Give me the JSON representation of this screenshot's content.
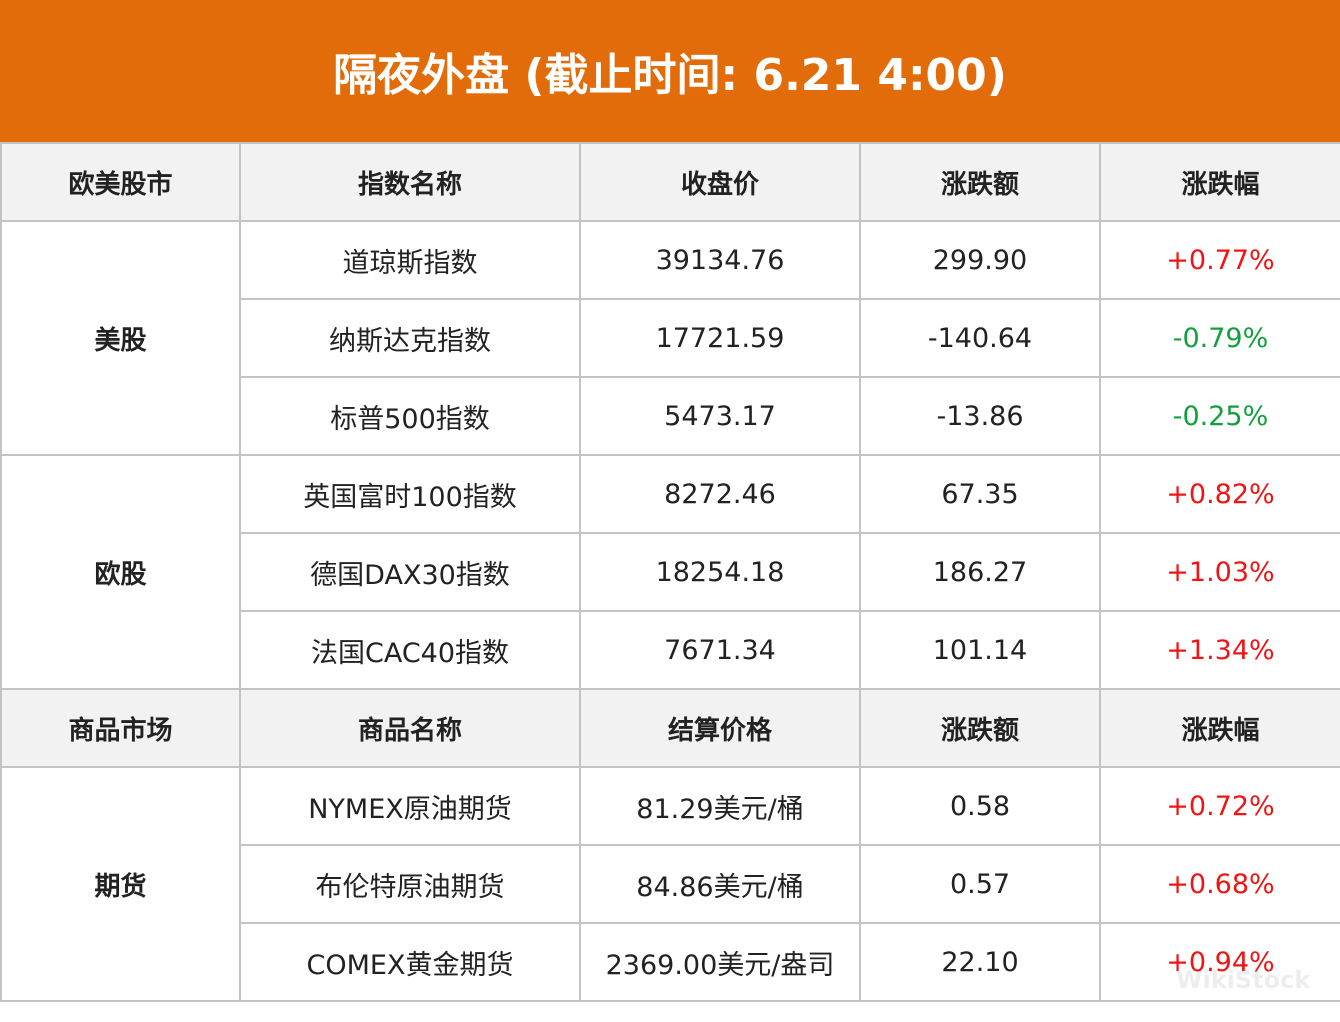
{
  "title": "隔夜外盘 (截止时间: 6.21 4:00)",
  "colors": {
    "banner": "#E36C0A",
    "up": "#f01414",
    "down": "#12a03c"
  },
  "sections": [
    {
      "headers": [
        "欧美股市",
        "指数名称",
        "收盘价",
        "涨跌额",
        "涨跌幅"
      ],
      "groups": [
        {
          "name": "美股",
          "rows": [
            {
              "name": "道琼斯指数",
              "price": "39134.76",
              "change": "299.90",
              "pct": "+0.77%",
              "dir": "up"
            },
            {
              "name": "纳斯达克指数",
              "price": "17721.59",
              "change": "-140.64",
              "pct": "-0.79%",
              "dir": "down"
            },
            {
              "name": "标普500指数",
              "price": "5473.17",
              "change": "-13.86",
              "pct": "-0.25%",
              "dir": "down"
            }
          ]
        },
        {
          "name": "欧股",
          "rows": [
            {
              "name": "英国富时100指数",
              "price": "8272.46",
              "change": "67.35",
              "pct": "+0.82%",
              "dir": "up"
            },
            {
              "name": "德国DAX30指数",
              "price": "18254.18",
              "change": "186.27",
              "pct": "+1.03%",
              "dir": "up"
            },
            {
              "name": "法国CAC40指数",
              "price": "7671.34",
              "change": "101.14",
              "pct": "+1.34%",
              "dir": "up"
            }
          ]
        }
      ]
    },
    {
      "headers": [
        "商品市场",
        "商品名称",
        "结算价格",
        "涨跌额",
        "涨跌幅"
      ],
      "groups": [
        {
          "name": "期货",
          "rows": [
            {
              "name": "NYMEX原油期货",
              "price": "81.29美元/桶",
              "change": "0.58",
              "pct": "+0.72%",
              "dir": "up"
            },
            {
              "name": "布伦特原油期货",
              "price": "84.86美元/桶",
              "change": "0.57",
              "pct": "+0.68%",
              "dir": "up"
            },
            {
              "name": "COMEX黄金期货",
              "price": "2369.00美元/盎司",
              "change": "22.10",
              "pct": "+0.94%",
              "dir": "up"
            }
          ]
        }
      ]
    }
  ],
  "watermark": "WikiStock"
}
